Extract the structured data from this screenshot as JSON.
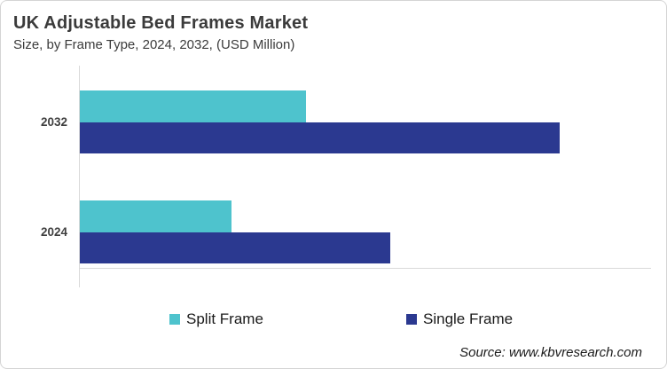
{
  "header": {
    "title": "UK Adjustable Bed Frames Market",
    "subtitle": "Size, by Frame Type, 2024, 2032, (USD Million)"
  },
  "footer": {
    "source": "Source: www.kbvresearch.com"
  },
  "legend": {
    "items": [
      {
        "label": "Split Frame",
        "color": "#4EC3CD"
      },
      {
        "label": "Single Frame",
        "color": "#2B3990"
      }
    ]
  },
  "chart_data": {
    "type": "bar",
    "orientation": "horizontal",
    "title": "UK Adjustable Bed Frames Market",
    "subtitle": "Size, by Frame Type, 2024, 2032, (USD Million)",
    "unit": "USD Million",
    "categories": [
      "2032",
      "2024"
    ],
    "series": [
      {
        "name": "Split Frame",
        "color": "#4EC3CD",
        "values": [
          255,
          171
        ]
      },
      {
        "name": "Single Frame",
        "color": "#2B3990",
        "values": [
          541,
          350
        ]
      }
    ],
    "value_axis": {
      "labels_shown": false,
      "min": 0,
      "max": 644
    },
    "values_note": "No numeric axis labels shown in chart; values are relative bar lengths estimated from the image.",
    "grid": false,
    "legend_position": "bottom"
  },
  "colors": {
    "split_frame": "#4EC3CD",
    "single_frame": "#2B3990",
    "axis_line": "#D9D9D9",
    "card_border": "#D4D4D4",
    "text_dark": "#3B3B3B"
  }
}
